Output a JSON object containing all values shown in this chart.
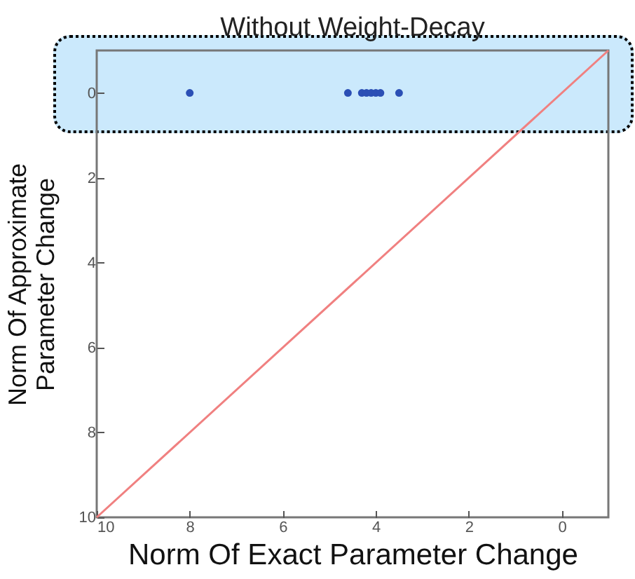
{
  "chart_data": {
    "type": "scatter",
    "title": "Without  Weight-Decay",
    "xlabel": "Norm Of Exact Parameter Change",
    "ylabel": "Norm Of Approximate\nParameter Change",
    "xlim": [
      10,
      -1
    ],
    "xticks": [
      10,
      8,
      6,
      4,
      2,
      0
    ],
    "ylim": [
      10,
      -1
    ],
    "yticks": [
      10,
      8,
      6,
      4,
      2,
      0
    ],
    "grid": false,
    "marker": "circle",
    "series": [
      {
        "type": "line",
        "marker": "none",
        "color": "#f08080",
        "x": [
          10,
          -1
        ],
        "values": [
          10,
          -1
        ]
      },
      {
        "color": "#2b4fb5",
        "x": [
          8,
          4.6,
          4.3,
          4.2,
          4.1,
          4.0,
          3.9,
          3.5
        ],
        "values": [
          0,
          0,
          0,
          0,
          0,
          0,
          0,
          0
        ]
      }
    ]
  }
}
